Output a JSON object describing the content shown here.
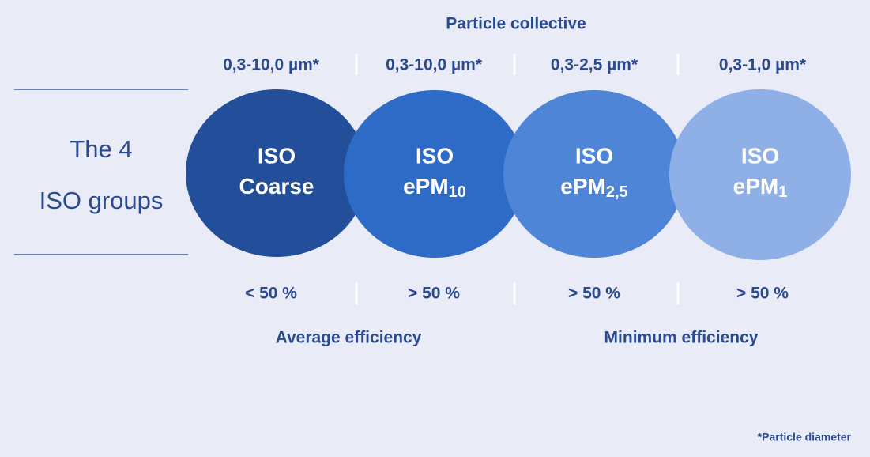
{
  "header": {
    "title": "Particle collective"
  },
  "left_label": {
    "line1": "The 4",
    "line2": "ISO groups"
  },
  "groups": [
    {
      "range": "0,3-10,0 µm*",
      "name": "ISO",
      "label": "Coarse",
      "subscript": null,
      "efficiency": "< 50 %"
    },
    {
      "range": "0,3-10,0 µm*",
      "name": "ISO",
      "label": "ePM",
      "subscript": "10",
      "efficiency": "> 50 %"
    },
    {
      "range": "0,3-2,5 µm*",
      "name": "ISO",
      "label": "ePM",
      "subscript": "2,5",
      "efficiency": "> 50 %"
    },
    {
      "range": "0,3-1,0 µm*",
      "name": "ISO",
      "label": "ePM",
      "subscript": "1",
      "efficiency": "> 50 %"
    }
  ],
  "efficiency_labels": [
    "Average efficiency",
    "Minimum efficiency"
  ],
  "footnote": "*Particle diameter"
}
